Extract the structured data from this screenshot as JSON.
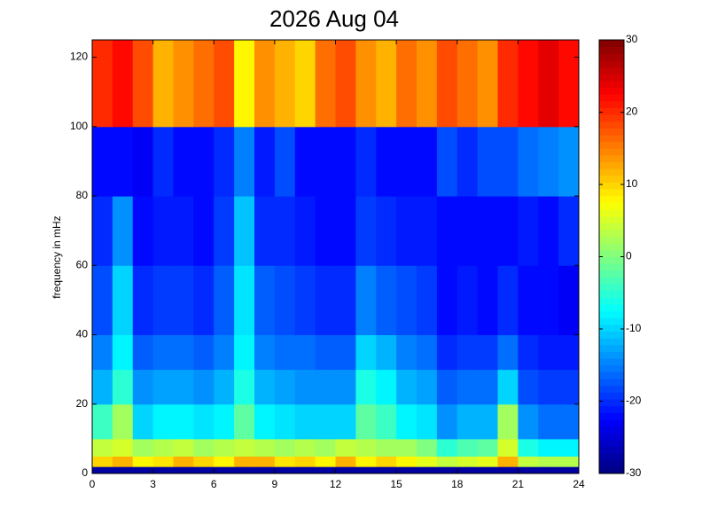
{
  "chart_data": {
    "type": "heatmap",
    "title": "2026 Aug 04",
    "y_label": "frequency in mHz",
    "x_edges": [
      0,
      1,
      2,
      3,
      4,
      5,
      6,
      7,
      8,
      9,
      10,
      11,
      12,
      13,
      14,
      15,
      16,
      17,
      18,
      19,
      20,
      21,
      22,
      23,
      24
    ],
    "y_edges": [
      0,
      2,
      5,
      10,
      20,
      30,
      40,
      60,
      80,
      100,
      125
    ],
    "values": [
      [
        -28,
        -28,
        -28,
        -28,
        -28,
        -28,
        -28,
        -28,
        -28,
        -28,
        -28,
        -28,
        -28,
        -28,
        -28,
        -28,
        -28,
        -28,
        -28,
        -28,
        -28,
        -28,
        -28,
        -28
      ],
      [
        10,
        12,
        8,
        9,
        12,
        10,
        8,
        12,
        12,
        9,
        10,
        8,
        12,
        8,
        10,
        8,
        6,
        4,
        5,
        6,
        12,
        4,
        3,
        3
      ],
      [
        4,
        5,
        2,
        3,
        4,
        2,
        3,
        4,
        3,
        2,
        3,
        2,
        4,
        3,
        2,
        2,
        0,
        -5,
        -3,
        -2,
        5,
        -6,
        -8,
        -8
      ],
      [
        -4,
        2,
        -10,
        -8,
        -8,
        -9,
        -8,
        -2,
        -8,
        -9,
        -10,
        -10,
        -10,
        -2,
        -4,
        -8,
        -9,
        -14,
        -12,
        -12,
        2,
        -14,
        -16,
        -16
      ],
      [
        -12,
        -5,
        -14,
        -13,
        -13,
        -14,
        -12,
        -6,
        -12,
        -13,
        -14,
        -14,
        -14,
        -6,
        -8,
        -12,
        -13,
        -17,
        -16,
        -16,
        -10,
        -18,
        -19,
        -19
      ],
      [
        -15,
        -8,
        -17,
        -16,
        -16,
        -17,
        -15,
        -8,
        -15,
        -16,
        -16,
        -17,
        -17,
        -10,
        -12,
        -15,
        -16,
        -20,
        -19,
        -19,
        -16,
        -20,
        -21,
        -21
      ],
      [
        -18,
        -10,
        -20,
        -19,
        -19,
        -20,
        -17,
        -9,
        -17,
        -18,
        -19,
        -20,
        -20,
        -15,
        -17,
        -18,
        -19,
        -22,
        -21,
        -22,
        -20,
        -22,
        -22,
        -23
      ],
      [
        -20,
        -14,
        -22,
        -21,
        -21,
        -22,
        -19,
        -11,
        -20,
        -20,
        -21,
        -22,
        -22,
        -19,
        -20,
        -21,
        -21,
        -22,
        -22,
        -22,
        -22,
        -21,
        -22,
        -20
      ],
      [
        -22,
        -22,
        -23,
        -20,
        -22,
        -22,
        -20,
        -15,
        -21,
        -18,
        -22,
        -22,
        -22,
        -20,
        -22,
        -22,
        -22,
        -18,
        -20,
        -18,
        -18,
        -16,
        -15,
        -14
      ],
      [
        20,
        22,
        18,
        12,
        14,
        16,
        18,
        8,
        14,
        12,
        10,
        16,
        18,
        14,
        12,
        16,
        14,
        18,
        16,
        14,
        20,
        22,
        24,
        22
      ]
    ],
    "xlim": [
      0,
      24
    ],
    "xticks": [
      0,
      3,
      6,
      9,
      12,
      15,
      18,
      21,
      24
    ],
    "ylim": [
      0,
      125
    ],
    "yticks": [
      0,
      20,
      40,
      60,
      80,
      100,
      120
    ],
    "clim": [
      -30,
      30
    ],
    "cticks": [
      -30,
      -20,
      -10,
      0,
      10,
      20,
      30
    ],
    "colormap": "jet"
  }
}
